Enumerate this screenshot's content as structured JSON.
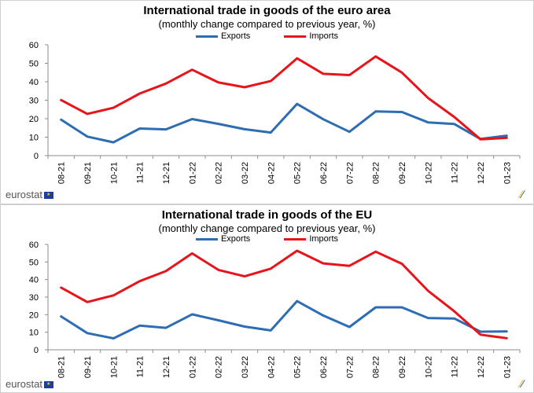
{
  "brand": "eurostat",
  "chart_data": [
    {
      "type": "line",
      "title": "International trade in goods of the euro area",
      "subtitle": "(monthly change compared to previous year, %)",
      "categories": [
        "08-21",
        "09-21",
        "10-21",
        "11-21",
        "12-21",
        "01-22",
        "02-22",
        "03-22",
        "04-22",
        "05-22",
        "06-22",
        "07-22",
        "08-22",
        "09-22",
        "10-22",
        "11-22",
        "12-22",
        "01-23"
      ],
      "series": [
        {
          "name": "Exports",
          "color": "#2e6db4",
          "values": [
            19.5,
            10.3,
            7.2,
            14.7,
            14.2,
            19.8,
            17.2,
            14.3,
            12.5,
            28.0,
            19.7,
            12.9,
            23.9,
            23.6,
            18.0,
            17.1,
            9.0,
            10.8
          ]
        },
        {
          "name": "Imports",
          "color": "#e8141b",
          "values": [
            30.1,
            22.6,
            25.9,
            33.6,
            39.0,
            46.5,
            39.6,
            37.0,
            40.4,
            52.7,
            44.3,
            43.6,
            53.7,
            45.0,
            31.2,
            20.9,
            8.8,
            9.6
          ]
        }
      ],
      "ylim": [
        0,
        60
      ],
      "yticks": [
        0,
        10,
        20,
        30,
        40,
        50,
        60
      ],
      "xlabel": "",
      "ylabel": "",
      "grid": false,
      "legend": "top"
    },
    {
      "type": "line",
      "title": "International trade in goods of the EU",
      "subtitle": "(monthly change compared to previous year, %)",
      "categories": [
        "08-21",
        "09-21",
        "10-21",
        "11-21",
        "12-21",
        "01-22",
        "02-22",
        "03-22",
        "04-22",
        "05-22",
        "06-22",
        "07-22",
        "08-22",
        "09-22",
        "10-22",
        "11-22",
        "12-22",
        "01-23"
      ],
      "series": [
        {
          "name": "Exports",
          "color": "#2e6db4",
          "values": [
            19.0,
            9.5,
            6.5,
            13.8,
            12.5,
            20.2,
            16.8,
            13.2,
            11.0,
            27.7,
            19.5,
            13.0,
            24.2,
            24.2,
            18.1,
            17.8,
            10.3,
            10.5
          ]
        },
        {
          "name": "Imports",
          "color": "#e8141b",
          "values": [
            35.4,
            27.2,
            31.0,
            39.1,
            44.8,
            54.9,
            45.5,
            41.8,
            46.2,
            56.4,
            49.2,
            47.8,
            55.9,
            49.0,
            33.6,
            21.9,
            8.6,
            6.6
          ]
        }
      ],
      "ylim": [
        0,
        60
      ],
      "yticks": [
        0,
        10,
        20,
        30,
        40,
        50,
        60
      ],
      "xlabel": "",
      "ylabel": "",
      "grid": false,
      "legend": "top"
    }
  ]
}
